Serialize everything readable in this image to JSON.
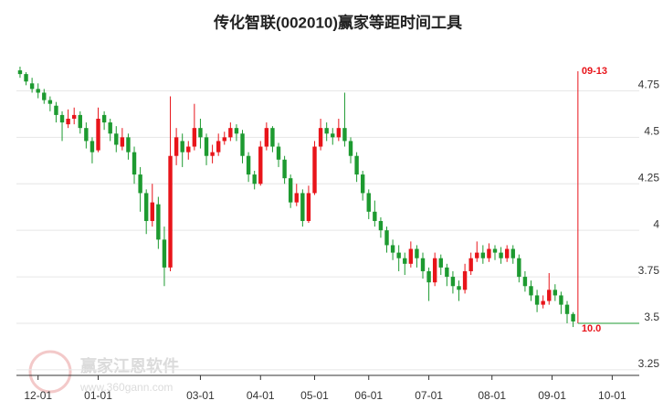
{
  "chart_data": {
    "type": "candlestick",
    "title": "传化智联(002010)赢家等距时间工具",
    "watermark": {
      "brand": "赢家江恩软件",
      "url": "www.360gann.com"
    },
    "xlim": [
      -0.6,
      103
    ],
    "ylim": [
      3.22,
      4.87
    ],
    "yticks": [
      3.25,
      3.5,
      3.75,
      4,
      4.25,
      4.5,
      4.75
    ],
    "xticks": [
      {
        "value": 3,
        "label": "12-01"
      },
      {
        "value": 13,
        "label": "01-01"
      },
      {
        "value": 30,
        "label": "03-01"
      },
      {
        "value": 40,
        "label": "04-01"
      },
      {
        "value": 49,
        "label": "05-01"
      },
      {
        "value": 58,
        "label": "06-01"
      },
      {
        "value": 68,
        "label": "07-01"
      },
      {
        "value": 78.5,
        "label": "08-01"
      },
      {
        "value": 88.5,
        "label": "09-01"
      },
      {
        "value": 98.5,
        "label": "10-01"
      }
    ],
    "grid": true,
    "up_color": "#e8141a",
    "down_color": "#1d9a30",
    "open": [
      4.86,
      4.84,
      4.79,
      4.76,
      4.74,
      4.7,
      4.67,
      4.62,
      4.57,
      4.6,
      4.62,
      4.55,
      4.48,
      4.43,
      4.62,
      4.58,
      4.52,
      4.45,
      4.5,
      4.42,
      4.3,
      4.2,
      4.05,
      4.14,
      3.95,
      3.8,
      4.4,
      4.48,
      4.42,
      4.45,
      4.55,
      4.5,
      4.4,
      4.42,
      4.48,
      4.5,
      4.55,
      4.52,
      4.4,
      4.3,
      4.25,
      4.45,
      4.55,
      4.45,
      4.38,
      4.28,
      4.15,
      4.2,
      4.05,
      4.2,
      4.45,
      4.55,
      4.52,
      4.5,
      4.55,
      4.48,
      4.4,
      4.3,
      4.2,
      4.1,
      4.05,
      4.0,
      3.92,
      3.88,
      3.85,
      3.82,
      3.9,
      3.85,
      3.78,
      3.72,
      3.85,
      3.8,
      3.75,
      3.7,
      3.68,
      3.78,
      3.85,
      3.88,
      3.85,
      3.9,
      3.88,
      3.85,
      3.9,
      3.85,
      3.75,
      3.7,
      3.65,
      3.6,
      3.62,
      3.68,
      3.65,
      3.6,
      3.55
    ],
    "high": [
      4.88,
      4.85,
      4.82,
      4.79,
      4.76,
      4.72,
      4.69,
      4.64,
      4.65,
      4.66,
      4.64,
      4.58,
      4.5,
      4.66,
      4.64,
      4.6,
      4.56,
      4.55,
      4.52,
      4.45,
      4.34,
      4.22,
      4.25,
      4.18,
      4.02,
      4.72,
      4.55,
      4.52,
      4.48,
      4.68,
      4.6,
      4.52,
      4.46,
      4.52,
      4.53,
      4.58,
      4.57,
      4.54,
      4.42,
      4.32,
      4.48,
      4.58,
      4.56,
      4.47,
      4.4,
      4.3,
      4.25,
      4.22,
      4.24,
      4.48,
      4.6,
      4.58,
      4.55,
      4.6,
      4.74,
      4.5,
      4.42,
      4.32,
      4.22,
      4.16,
      4.07,
      4.02,
      3.95,
      3.92,
      3.88,
      3.94,
      3.92,
      3.88,
      3.8,
      3.88,
      3.87,
      3.82,
      3.78,
      3.73,
      3.82,
      3.88,
      3.94,
      3.92,
      3.93,
      3.92,
      3.91,
      3.92,
      3.92,
      3.87,
      3.78,
      3.73,
      3.68,
      3.65,
      3.77,
      3.71,
      3.67,
      3.62,
      3.56
    ],
    "low": [
      4.82,
      4.78,
      4.74,
      4.71,
      4.68,
      4.64,
      4.58,
      4.48,
      4.55,
      4.57,
      4.52,
      4.44,
      4.36,
      4.42,
      4.54,
      4.48,
      4.42,
      4.43,
      4.38,
      4.25,
      4.1,
      3.98,
      4.02,
      3.9,
      3.7,
      3.78,
      4.35,
      4.34,
      4.38,
      4.43,
      4.44,
      4.35,
      4.36,
      4.4,
      4.46,
      4.48,
      4.48,
      4.36,
      4.26,
      4.22,
      4.24,
      4.43,
      4.42,
      4.34,
      4.25,
      4.12,
      4.13,
      4.02,
      4.04,
      4.19,
      4.43,
      4.48,
      4.46,
      4.48,
      4.45,
      4.36,
      4.26,
      4.16,
      4.06,
      4.02,
      3.96,
      3.88,
      3.84,
      3.78,
      3.76,
      3.8,
      3.8,
      3.74,
      3.62,
      3.7,
      3.76,
      3.7,
      3.66,
      3.62,
      3.66,
      3.76,
      3.83,
      3.82,
      3.83,
      3.84,
      3.82,
      3.83,
      3.82,
      3.72,
      3.67,
      3.62,
      3.56,
      3.58,
      3.6,
      3.62,
      3.55,
      3.5,
      3.48
    ],
    "close": [
      4.84,
      4.8,
      4.76,
      4.74,
      4.7,
      4.68,
      4.62,
      4.58,
      4.6,
      4.62,
      4.55,
      4.48,
      4.42,
      4.6,
      4.58,
      4.52,
      4.46,
      4.5,
      4.42,
      4.3,
      4.2,
      4.05,
      4.15,
      3.95,
      3.8,
      4.4,
      4.5,
      4.42,
      4.45,
      4.55,
      4.5,
      4.4,
      4.42,
      4.48,
      4.5,
      4.55,
      4.52,
      4.4,
      4.3,
      4.25,
      4.45,
      4.55,
      4.45,
      4.38,
      4.28,
      4.15,
      4.2,
      4.05,
      4.2,
      4.45,
      4.55,
      4.52,
      4.5,
      4.55,
      4.48,
      4.4,
      4.3,
      4.2,
      4.1,
      4.05,
      4.0,
      3.92,
      3.88,
      3.85,
      3.82,
      3.9,
      3.85,
      3.78,
      3.72,
      3.85,
      3.8,
      3.75,
      3.7,
      3.68,
      3.78,
      3.85,
      3.88,
      3.85,
      3.9,
      3.88,
      3.85,
      3.9,
      3.85,
      3.75,
      3.7,
      3.65,
      3.6,
      3.62,
      3.68,
      3.65,
      3.6,
      3.55,
      3.51
    ],
    "date_marker": {
      "x": 92.8,
      "label": "09-13",
      "color": "#e8141a"
    },
    "level_marker": {
      "y": 3.5,
      "label": "10.0",
      "color": "#1d9a30",
      "label_color": "#e8141a"
    }
  }
}
